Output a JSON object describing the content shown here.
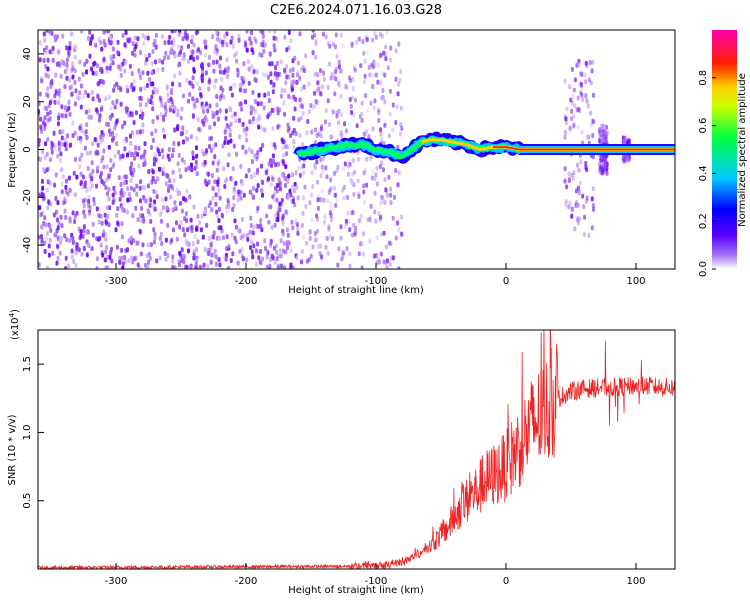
{
  "title": "C2E6.2024.071.16.03.G28",
  "chart_data": [
    {
      "type": "heatmap",
      "xlabel": "Height of straight line (km)",
      "ylabel": "Frequency (Hz)",
      "xlim": [
        -360,
        130
      ],
      "ylim": [
        -50,
        50
      ],
      "xticks": [
        -300,
        -200,
        -100,
        0,
        100
      ],
      "yticks": [
        -40,
        -20,
        0,
        20,
        40
      ],
      "colorbar": {
        "label": "Normalized spectral amplitude",
        "range": [
          0,
          1
        ],
        "ticks": [
          "0.0",
          "0.2",
          "0.4",
          "0.6",
          "0.8"
        ],
        "colors": [
          "#ffffff",
          "#8a2be2",
          "#0000ff",
          "#00ffff",
          "#00ff00",
          "#ffff00",
          "#ff0000",
          "#ff00ff"
        ]
      },
      "ridge": {
        "x": [
          -160,
          -150,
          -140,
          -130,
          -120,
          -110,
          -100,
          -90,
          -80,
          -70,
          -65,
          -60,
          -50,
          -40,
          -30,
          -20,
          -10,
          0,
          10,
          50,
          130
        ],
        "y": [
          -2,
          -1,
          0,
          1,
          2,
          2,
          0,
          -1,
          -3,
          1,
          3,
          4,
          4,
          3,
          2,
          0,
          1,
          1,
          0,
          0,
          0
        ]
      },
      "regions": [
        {
          "from": -360,
          "to": -160,
          "kind": "noise",
          "density": "high"
        },
        {
          "from": -160,
          "to": -95,
          "kind": "noise",
          "density": "medium"
        },
        {
          "from": -95,
          "to": -80,
          "kind": "noise",
          "density": "low"
        },
        {
          "from": 45,
          "to": 68,
          "kind": "burst",
          "yrange": [
            -37,
            37
          ]
        },
        {
          "from": 72,
          "to": 78,
          "kind": "burst",
          "yrange": [
            -10,
            10
          ]
        },
        {
          "from": 90,
          "to": 95,
          "kind": "burst",
          "yrange": [
            -5,
            5
          ]
        }
      ]
    },
    {
      "type": "line",
      "xlabel": "Height of straight line (km)",
      "ylabel": "SNR (10 * v/v)",
      "yscale_label": "(x10",
      "yscale_exp": "4",
      "yscale_close": ")",
      "xlim": [
        -360,
        130
      ],
      "ylim": [
        0,
        17500
      ],
      "xticks": [
        -300,
        -200,
        -100,
        0,
        100
      ],
      "yticks": [
        "0.5",
        "1.0",
        "1.5"
      ],
      "color": "#ee2222",
      "series": [
        {
          "x": [
            -360,
            -120,
            -100,
            -85,
            -80,
            -60,
            -45,
            -35,
            -30,
            -15,
            0,
            10,
            20,
            30,
            40,
            50,
            60,
            80,
            100,
            110,
            120,
            130
          ],
          "y": [
            100,
            200,
            300,
            400,
            500,
            1500,
            3000,
            4500,
            5000,
            6500,
            7500,
            9000,
            10500,
            11500,
            12500,
            13000,
            13200,
            13300,
            13400,
            13400,
            13300,
            13300
          ]
        }
      ]
    }
  ]
}
